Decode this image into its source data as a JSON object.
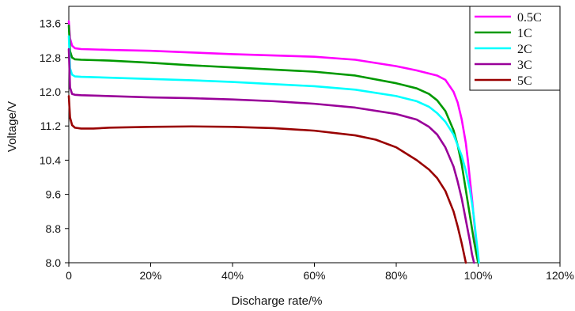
{
  "chart_data": {
    "type": "line",
    "title": "",
    "xlabel": "Discharge rate/%",
    "ylabel": "Voltage/V",
    "xlim": [
      0,
      120
    ],
    "ylim": [
      8.0,
      14.0
    ],
    "x_ticks": [
      0,
      20,
      40,
      60,
      80,
      100,
      120
    ],
    "x_tick_labels": [
      "0",
      "20%",
      "40%",
      "60%",
      "80%",
      "100%",
      "120%"
    ],
    "y_ticks": [
      8.0,
      8.8,
      9.6,
      10.4,
      11.2,
      12.0,
      12.8,
      13.6
    ],
    "y_tick_labels": [
      "8.0",
      "8.8",
      "9.6",
      "10.4",
      "11.2",
      "12.0",
      "12.8",
      "13.6"
    ],
    "grid": false,
    "legend_position": "top-right",
    "series": [
      {
        "name": "0.5C",
        "color": "#ff00ff",
        "x": [
          0,
          0.3,
          0.8,
          1.5,
          3,
          10,
          20,
          30,
          40,
          50,
          60,
          70,
          80,
          85,
          90,
          92,
          94,
          95,
          96,
          97,
          97.5,
          98,
          98.5,
          99,
          99.5,
          100
        ],
        "y": [
          13.65,
          13.25,
          13.08,
          13.02,
          13.0,
          12.98,
          12.96,
          12.92,
          12.88,
          12.85,
          12.82,
          12.75,
          12.6,
          12.5,
          12.38,
          12.28,
          12.0,
          11.75,
          11.35,
          10.8,
          10.4,
          9.95,
          9.5,
          9.0,
          8.5,
          8.0
        ]
      },
      {
        "name": "1C",
        "color": "#009900",
        "x": [
          0,
          0.3,
          0.8,
          1.5,
          3,
          10,
          20,
          30,
          40,
          50,
          60,
          70,
          80,
          85,
          88,
          90,
          92,
          94,
          95,
          96,
          97,
          98,
          98.5,
          99,
          99.5,
          100
        ],
        "y": [
          13.55,
          12.95,
          12.8,
          12.76,
          12.75,
          12.73,
          12.68,
          12.62,
          12.57,
          12.52,
          12.47,
          12.38,
          12.2,
          12.08,
          11.95,
          11.8,
          11.55,
          11.1,
          10.75,
          10.3,
          9.7,
          9.1,
          8.8,
          8.5,
          8.25,
          8.0
        ]
      },
      {
        "name": "2C",
        "color": "#00ffff",
        "x": [
          0,
          0.3,
          0.8,
          1.5,
          3,
          10,
          20,
          30,
          40,
          50,
          60,
          70,
          80,
          85,
          88,
          90,
          92,
          94,
          96,
          97,
          98,
          98.5,
          99,
          99.5,
          100,
          100.2
        ],
        "y": [
          13.3,
          12.55,
          12.4,
          12.36,
          12.35,
          12.33,
          12.3,
          12.27,
          12.23,
          12.18,
          12.13,
          12.05,
          11.9,
          11.78,
          11.65,
          11.5,
          11.3,
          11.0,
          10.5,
          10.15,
          9.7,
          9.4,
          9.05,
          8.6,
          8.2,
          8.0
        ]
      },
      {
        "name": "3C",
        "color": "#990099",
        "x": [
          0,
          0.3,
          0.8,
          1.5,
          3,
          10,
          20,
          30,
          40,
          50,
          60,
          70,
          80,
          85,
          88,
          90,
          92,
          94,
          95,
          96,
          97,
          98,
          98.5,
          99
        ],
        "y": [
          13.0,
          12.1,
          11.95,
          11.93,
          11.92,
          11.9,
          11.87,
          11.85,
          11.82,
          11.78,
          11.72,
          11.63,
          11.48,
          11.35,
          11.18,
          11.0,
          10.7,
          10.25,
          9.9,
          9.5,
          9.0,
          8.5,
          8.2,
          8.0
        ]
      },
      {
        "name": "5C",
        "color": "#990000",
        "x": [
          0,
          0.3,
          0.8,
          1.5,
          3,
          6,
          10,
          20,
          30,
          40,
          50,
          60,
          70,
          75,
          80,
          85,
          88,
          90,
          92,
          94,
          95,
          96,
          97
        ],
        "y": [
          11.9,
          11.4,
          11.22,
          11.16,
          11.14,
          11.14,
          11.16,
          11.18,
          11.19,
          11.18,
          11.15,
          11.09,
          10.98,
          10.88,
          10.7,
          10.4,
          10.18,
          9.98,
          9.68,
          9.2,
          8.85,
          8.45,
          8.0
        ]
      }
    ]
  }
}
